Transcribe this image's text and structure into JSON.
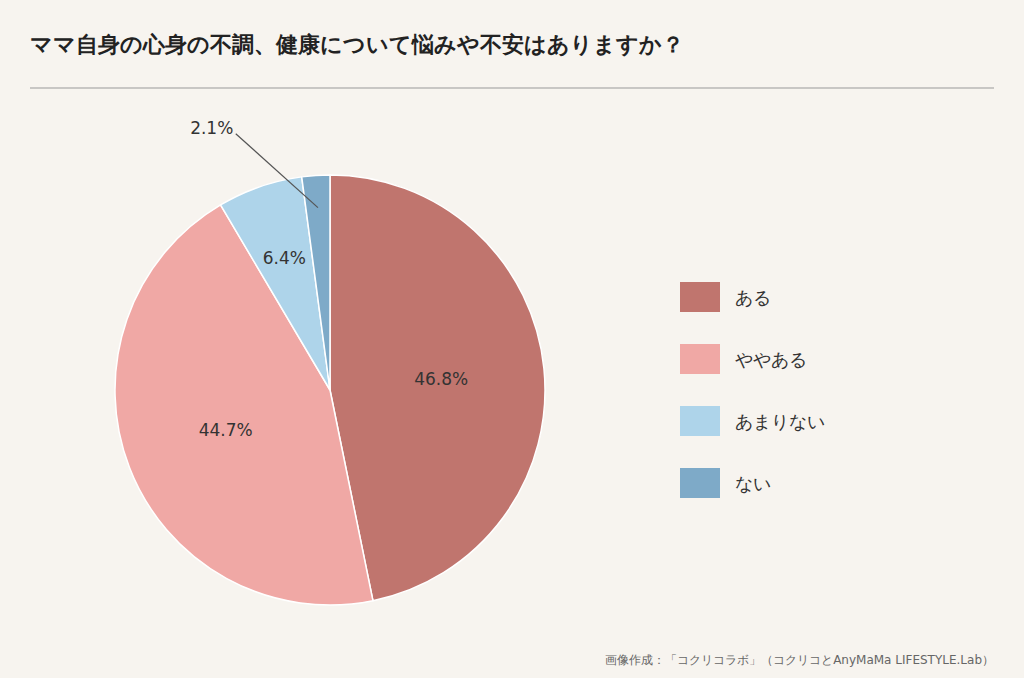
{
  "chart_data": {
    "type": "pie",
    "title": "ママ自身の心身の不調、健康について悩みや不安はありますか？",
    "categories": [
      "ある",
      "ややある",
      "あまりない",
      "ない"
    ],
    "values": [
      46.8,
      44.7,
      6.4,
      2.1
    ],
    "value_labels": [
      "46.8%",
      "44.7%",
      "6.4%",
      "2.1%"
    ],
    "colors": [
      "#c0756e",
      "#f0a8a5",
      "#aed4ea",
      "#7eaac8"
    ],
    "data_labels": true,
    "legend": "right",
    "annotations": [
      "画像作成：「コクリコラボ」（コクリコとAnyMaMa LIFESTYLE.Lab）"
    ]
  }
}
